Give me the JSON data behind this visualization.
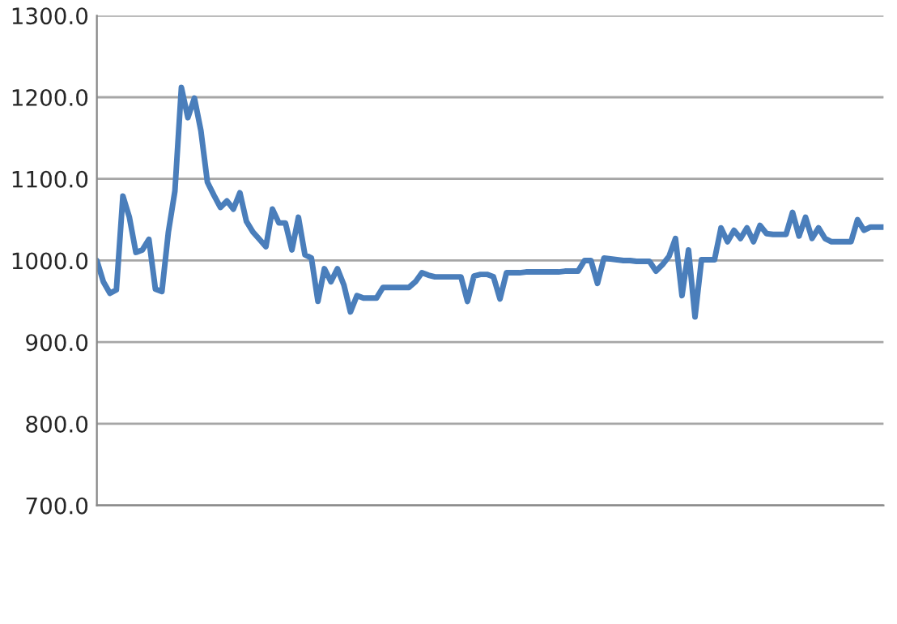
{
  "chart_data": {
    "type": "line",
    "tick_labels": "y",
    "grid": "y",
    "legend": false,
    "marker": "none",
    "line_style": "solid",
    "ylim": [
      700,
      1300
    ],
    "yticks": [
      {
        "value": 700,
        "label": "700.0"
      },
      {
        "value": 800,
        "label": "800.0"
      },
      {
        "value": 900,
        "label": "900.0"
      },
      {
        "value": 1000,
        "label": "1000.0"
      },
      {
        "value": 1100,
        "label": "1100.0"
      },
      {
        "value": 1200,
        "label": "1200.0"
      },
      {
        "value": 1300,
        "label": "1300.0"
      }
    ],
    "categories": [
      null,
      null,
      null,
      null,
      null,
      null,
      null,
      null,
      null,
      null,
      null,
      null,
      null,
      null,
      null,
      null,
      null,
      null,
      null,
      null,
      null,
      null,
      null,
      null,
      null,
      null,
      null,
      null,
      null,
      null,
      null,
      null,
      null,
      null,
      null,
      null,
      null,
      null,
      null,
      null,
      null,
      null,
      null,
      null,
      null,
      null,
      null,
      null,
      null,
      null,
      null,
      null,
      null,
      null,
      null,
      null,
      null,
      null,
      null,
      null,
      null,
      null,
      null,
      null,
      null,
      null,
      null,
      null,
      null,
      null,
      null,
      null,
      null,
      null,
      null,
      null,
      null,
      null,
      null,
      null,
      null,
      null,
      null,
      null,
      null,
      null,
      null,
      null,
      null,
      null,
      null,
      null,
      null,
      null,
      null,
      null,
      null,
      null,
      null,
      null,
      null,
      null,
      null,
      null,
      null,
      null,
      null,
      null,
      null,
      null,
      null,
      null,
      null,
      null,
      null,
      null,
      null,
      null,
      null,
      null,
      null,
      null
    ],
    "series": [
      {
        "color": "#4a7ebb",
        "values": [
          1000,
          974,
          960,
          964,
          1079,
          1053,
          1010,
          1013,
          1026,
          965,
          962,
          1035,
          1085,
          1212,
          1175,
          1199,
          1159,
          1096,
          1080,
          1065,
          1073,
          1063,
          1083,
          1048,
          1035,
          1026,
          1017,
          1063,
          1046,
          1046,
          1013,
          1053,
          1007,
          1003,
          950,
          990,
          974,
          990,
          970,
          937,
          957,
          954,
          954,
          954,
          967,
          967,
          967,
          967,
          967,
          974,
          985,
          982,
          980,
          980,
          980,
          980,
          980,
          950,
          981,
          983,
          983,
          980,
          953,
          985,
          985,
          985,
          986,
          986,
          986,
          986,
          986,
          986,
          987,
          987,
          987,
          1000,
          1000,
          972,
          1003,
          1002,
          1001,
          1000,
          1000,
          999,
          999,
          999,
          987,
          995,
          1005,
          1027,
          957,
          1013,
          931,
          1001,
          1001,
          1001,
          1040,
          1023,
          1037,
          1027,
          1040,
          1023,
          1043,
          1033,
          1032,
          1032,
          1032,
          1059,
          1030,
          1053,
          1027,
          1040,
          1027,
          1023,
          1023,
          1023,
          1023,
          1050,
          1037,
          1041,
          1041,
          1041
        ]
      }
    ]
  }
}
